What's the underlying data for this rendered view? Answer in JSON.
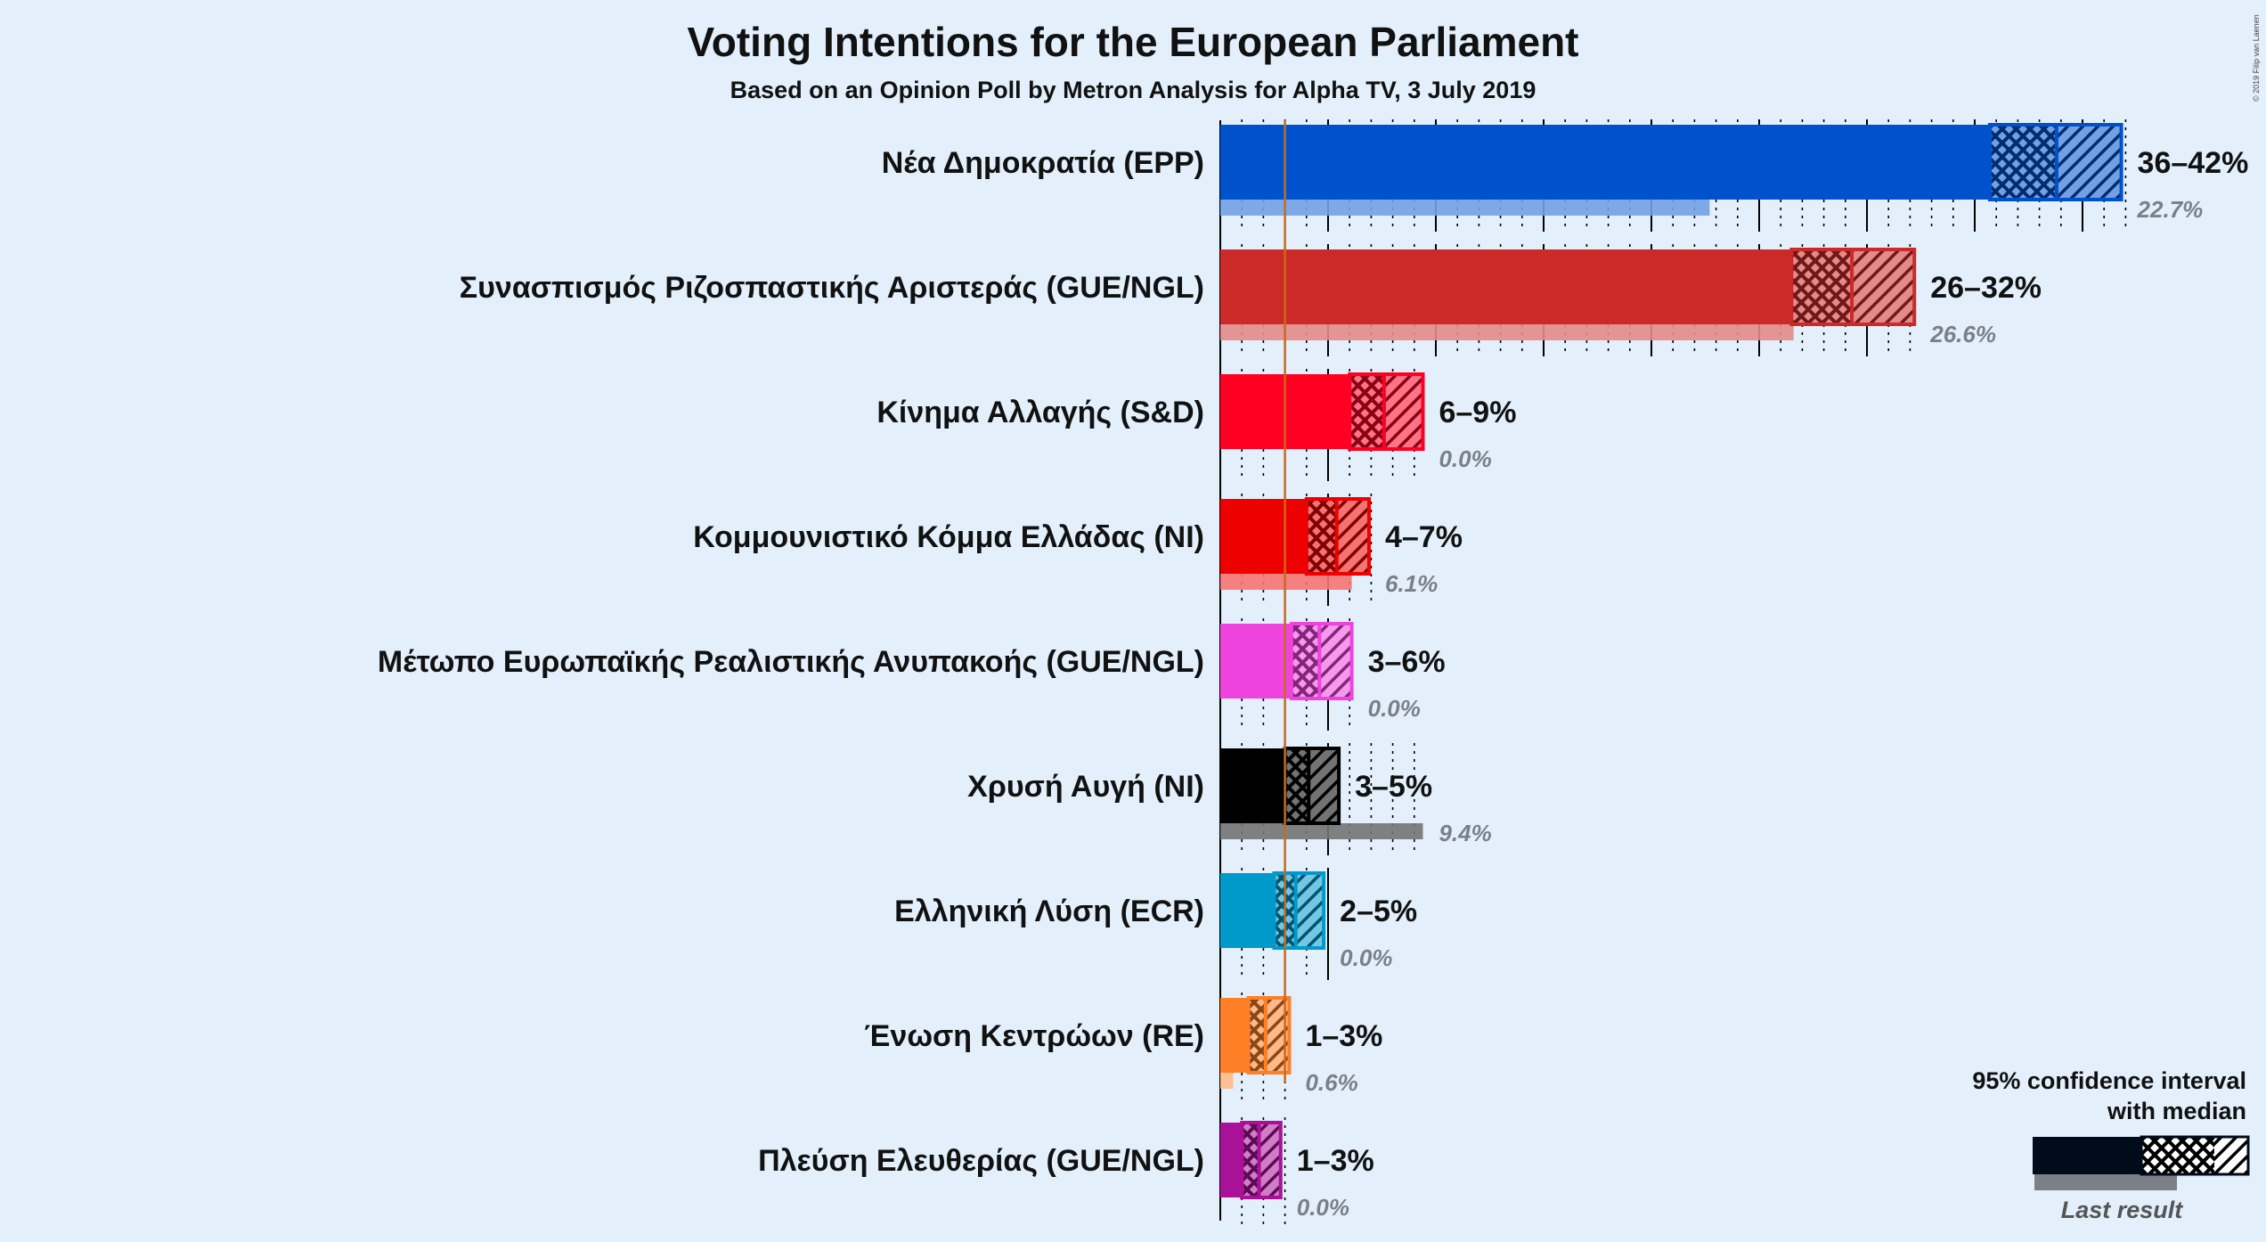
{
  "chart_data": {
    "type": "bar",
    "title": "Voting Intentions for the European Parliament",
    "subtitle": "Based on an Opinion Poll by Metron Analysis for Alpha TV, 3 July 2019",
    "copyright": "© 2019 Filip van Laenen",
    "x_unit": "%",
    "xlim": [
      0,
      42
    ],
    "threshold": 3,
    "categories": [
      "Νέα Δημοκρατία (EPP)",
      "Συνασπισμός Ριζοσπαστικής Αριστεράς (GUE/NGL)",
      "Κίνημα Αλλαγής (S&D)",
      "Κομμουνιστικό Κόμμα Ελλάδας (NI)",
      "Μέτωπο Ευρωπαϊκής Ρεαλιστικής Ανυπακοής (GUE/NGL)",
      "Χρυσή Αυγή (NI)",
      "Ελληνική Λύση (ECR)",
      "Ένωση Κεντρώων (RE)",
      "Πλεύση Ελευθερίας (GUE/NGL)"
    ],
    "parties": [
      {
        "name": "Νέα Δημοκρατία (EPP)",
        "color": "#0052cc",
        "ci_low": 35.7,
        "median": 38.8,
        "ci_high": 41.8,
        "range_label": "36–42%",
        "last_result": 22.7,
        "last_label": "22.7%"
      },
      {
        "name": "Συνασπισμός Ριζοσπαστικής Αριστεράς (GUE/NGL)",
        "color": "#cc2929",
        "ci_low": 26.5,
        "median": 29.3,
        "ci_high": 32.2,
        "range_label": "26–32%",
        "last_result": 26.6,
        "last_label": "26.6%"
      },
      {
        "name": "Κίνημα Αλλαγής (S&D)",
        "color": "#ff0022",
        "ci_low": 6.0,
        "median": 7.6,
        "ci_high": 9.4,
        "range_label": "6–9%",
        "last_result": 0.0,
        "last_label": "0.0%"
      },
      {
        "name": "Κομμουνιστικό Κόμμα Ελλάδας (NI)",
        "color": "#ee0000",
        "ci_low": 4.0,
        "median": 5.4,
        "ci_high": 6.9,
        "range_label": "4–7%",
        "last_result": 6.1,
        "last_label": "6.1%"
      },
      {
        "name": "Μέτωπο Ευρωπαϊκής Ρεαλιστικής Ανυπακοής (GUE/NGL)",
        "color": "#ee44dd",
        "ci_low": 3.3,
        "median": 4.6,
        "ci_high": 6.1,
        "range_label": "3–6%",
        "last_result": 0.0,
        "last_label": "0.0%"
      },
      {
        "name": "Χρυσή Αυγή (NI)",
        "color": "#000000",
        "ci_low": 3.0,
        "median": 4.1,
        "ci_high": 5.5,
        "range_label": "3–5%",
        "last_result": 9.4,
        "last_label": "9.4%"
      },
      {
        "name": "Ελληνική Λύση (ECR)",
        "color": "#0099cc",
        "ci_low": 2.5,
        "median": 3.5,
        "ci_high": 4.8,
        "range_label": "2–5%",
        "last_result": 0.0,
        "last_label": "0.0%"
      },
      {
        "name": "Ένωση Κεντρώων (RE)",
        "color": "#ff7f27",
        "ci_low": 1.3,
        "median": 2.1,
        "ci_high": 3.2,
        "range_label": "1–3%",
        "last_result": 0.6,
        "last_label": "0.6%"
      },
      {
        "name": "Πλεύση Ελευθερίας (GUE/NGL)",
        "color": "#aa1199",
        "ci_low": 1.0,
        "median": 1.8,
        "ci_high": 2.8,
        "range_label": "1–3%",
        "last_result": 0.0,
        "last_label": "0.0%"
      }
    ],
    "legend": {
      "line1": "95% confidence interval",
      "line2": "with median",
      "last_result": "Last result",
      "placement": "bottom-right"
    }
  }
}
